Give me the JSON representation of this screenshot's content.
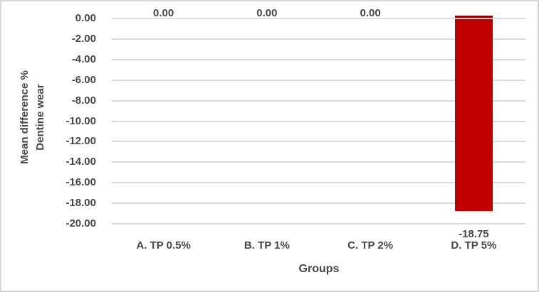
{
  "chart_data": {
    "type": "bar",
    "title": "",
    "categories": [
      "A. TP 0.5%",
      "B. TP 1%",
      "C. TP 2%",
      "D. TP 5%"
    ],
    "values": [
      0,
      0,
      0,
      -18.75
    ],
    "data_labels": [
      "0.00",
      "0.00",
      "0.00",
      "-18.75"
    ],
    "xlabel": "Groups",
    "ylabel": "Mean difference % Dentine wear",
    "ylabel_lines": [
      "Mean difference %",
      "Dentine wear"
    ],
    "ylim": [
      -20,
      0
    ],
    "ytick_step": 2,
    "yticks": [
      0,
      -2,
      -4,
      -6,
      -8,
      -10,
      -12,
      -14,
      -16,
      -18,
      -20
    ],
    "ytick_labels": [
      "0.00",
      "-2.00",
      "-4.00",
      "-6.00",
      "-8.00",
      "-10.00",
      "-12.00",
      "-14.00",
      "-16.00",
      "-18.00",
      "-20.00"
    ],
    "grid": true,
    "legend": "none",
    "colors": {
      "bar": "#C00000",
      "bar_top_edge": "#9B0000",
      "gridline": "#D9D9D9",
      "axis_line": "#D9D9D9",
      "text": "#474747",
      "chart_border": "#D6D6D6",
      "background": "#FFFFFF"
    }
  }
}
